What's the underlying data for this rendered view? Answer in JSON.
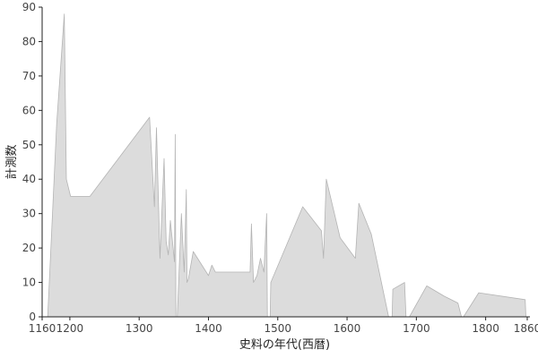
{
  "chart_data": {
    "type": "area",
    "title": "",
    "xlabel": "史料の年代(西暦)",
    "ylabel": "計測数",
    "xlim": [
      1160,
      1860
    ],
    "ylim": [
      0,
      90
    ],
    "x_ticks": [
      1160,
      1200,
      1300,
      1400,
      1500,
      1600,
      1700,
      1800,
      1860
    ],
    "y_ticks": [
      0,
      10,
      20,
      30,
      40,
      50,
      60,
      70,
      80,
      90
    ],
    "grid": false,
    "legend": "none",
    "colors": {
      "fill": "#dcdcdc",
      "stroke": "#b4b4b4",
      "axis": "#222222"
    },
    "segments": [
      {
        "x": [
          1168,
          1181,
          1192,
          1195,
          1201,
          1210,
          1229,
          1315,
          1322,
          1325,
          1330,
          1336,
          1339,
          1342,
          1345,
          1351,
          1352,
          1353
        ],
        "y": [
          0,
          56,
          88,
          40,
          35,
          35,
          35,
          58,
          32,
          55,
          17,
          46,
          22,
          18,
          28,
          16,
          53,
          0
        ]
      },
      {
        "x": [
          1355,
          1361,
          1365,
          1368,
          1369,
          1371,
          1378,
          1400,
          1405,
          1410,
          1460,
          1462,
          1465,
          1470,
          1475,
          1480,
          1484,
          1485
        ],
        "y": [
          0,
          30,
          13,
          37,
          10,
          11,
          19,
          12,
          15,
          13,
          13,
          27,
          10,
          12,
          17,
          13,
          30,
          0
        ]
      },
      {
        "x": [
          1489,
          1490,
          1536,
          1563,
          1566,
          1570,
          1590,
          1612,
          1617,
          1635,
          1660
        ],
        "y": [
          0,
          10,
          32,
          25,
          17,
          40,
          23,
          17,
          33,
          24,
          0
        ]
      },
      {
        "x": [
          1665,
          1666,
          1683,
          1685
        ],
        "y": [
          0,
          8,
          10,
          0
        ]
      },
      {
        "x": [
          1690,
          1715,
          1740,
          1760,
          1765
        ],
        "y": [
          0,
          9,
          6,
          4,
          0
        ]
      },
      {
        "x": [
          1768,
          1790,
          1857,
          1858
        ],
        "y": [
          0,
          7,
          5,
          0
        ]
      }
    ]
  }
}
